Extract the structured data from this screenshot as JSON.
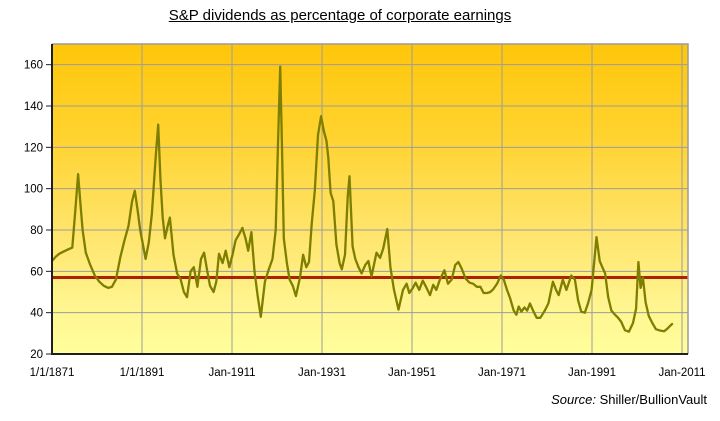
{
  "title": "S&P dividends as percentage of corporate earnings",
  "source": {
    "prefix": "Source:",
    "text": "Shiller/BullionVault"
  },
  "colors": {
    "background": "#FFFFFF",
    "grid": "#9C9C9C",
    "axis_dark": "#1F1F1F",
    "line": "#7E7E00",
    "avg_line": "#AE2100",
    "text": "#000000",
    "plot_gradient": [
      [
        "0%",
        "#FFC60A"
      ],
      [
        "30%",
        "#FFD32F"
      ],
      [
        "60%",
        "#FFE46B"
      ],
      [
        "85%",
        "#FFF590"
      ],
      [
        "100%",
        "#FFFF9C"
      ]
    ]
  },
  "chart_data": {
    "type": "line",
    "title": "S&P dividends as percentage of corporate earnings",
    "xlabel": "",
    "ylabel": "",
    "grid": true,
    "legend": false,
    "ylim": [
      20,
      170
    ],
    "xlim": [
      1871,
      2012.33
    ],
    "y_ticks": [
      20,
      40,
      60,
      80,
      100,
      120,
      140,
      160
    ],
    "x_tick_years": [
      1871,
      1891,
      1911,
      1931,
      1951,
      1971,
      1991,
      2011
    ],
    "x_tick_labels": [
      "1/1/1871",
      "1/1/1891",
      "Jan-1911",
      "Jan-1931",
      "Jan-1951",
      "Jan-1971",
      "Jan-1991",
      "Jan-2011"
    ],
    "average_line": {
      "value": 57
    },
    "series": [
      {
        "name": "S&P dividends as % of corporate earnings",
        "points": [
          [
            1871.0,
            65
          ],
          [
            1871.8,
            67
          ],
          [
            1872.6,
            68.5
          ],
          [
            1873.5,
            69.5
          ],
          [
            1874.5,
            70.5
          ],
          [
            1875.5,
            71.5
          ],
          [
            1876.2,
            90
          ],
          [
            1876.8,
            107
          ],
          [
            1877.3,
            93
          ],
          [
            1877.8,
            80
          ],
          [
            1878.5,
            69
          ],
          [
            1879.5,
            63
          ],
          [
            1880.5,
            58
          ],
          [
            1881.5,
            55
          ],
          [
            1882.5,
            53
          ],
          [
            1883.5,
            52
          ],
          [
            1884.3,
            52.5
          ],
          [
            1885.2,
            56
          ],
          [
            1886.2,
            67
          ],
          [
            1887.1,
            75
          ],
          [
            1888.0,
            82
          ],
          [
            1888.8,
            94
          ],
          [
            1889.4,
            99
          ],
          [
            1890.0,
            90
          ],
          [
            1890.6,
            80
          ],
          [
            1891.2,
            73
          ],
          [
            1891.8,
            66
          ],
          [
            1892.5,
            74
          ],
          [
            1893.2,
            88
          ],
          [
            1894.0,
            114
          ],
          [
            1894.6,
            131
          ],
          [
            1895.1,
            104
          ],
          [
            1895.6,
            86
          ],
          [
            1896.1,
            76
          ],
          [
            1896.7,
            82
          ],
          [
            1897.2,
            86
          ],
          [
            1898.0,
            68
          ],
          [
            1898.8,
            59
          ],
          [
            1899.6,
            56
          ],
          [
            1900.3,
            50
          ],
          [
            1901.0,
            47.5
          ],
          [
            1901.8,
            60
          ],
          [
            1902.5,
            62
          ],
          [
            1903.3,
            52.5
          ],
          [
            1904.1,
            66
          ],
          [
            1904.8,
            69
          ],
          [
            1905.5,
            60
          ],
          [
            1906.1,
            53
          ],
          [
            1906.9,
            50
          ],
          [
            1907.5,
            55
          ],
          [
            1908.1,
            68.5
          ],
          [
            1908.9,
            64
          ],
          [
            1909.6,
            70
          ],
          [
            1910.4,
            62
          ],
          [
            1911.1,
            68
          ],
          [
            1911.8,
            75
          ],
          [
            1912.6,
            78
          ],
          [
            1913.3,
            81
          ],
          [
            1914.0,
            76
          ],
          [
            1914.6,
            70
          ],
          [
            1915.3,
            79
          ],
          [
            1916.0,
            60
          ],
          [
            1916.7,
            48
          ],
          [
            1917.4,
            38
          ],
          [
            1918.3,
            55
          ],
          [
            1919.1,
            60.5
          ],
          [
            1920.0,
            66
          ],
          [
            1920.7,
            80
          ],
          [
            1921.2,
            120
          ],
          [
            1921.7,
            159
          ],
          [
            1922.1,
            120
          ],
          [
            1922.5,
            76
          ],
          [
            1923.2,
            64
          ],
          [
            1923.8,
            56
          ],
          [
            1924.5,
            53
          ],
          [
            1925.2,
            48
          ],
          [
            1926.1,
            57
          ],
          [
            1926.8,
            68
          ],
          [
            1927.5,
            62
          ],
          [
            1928.1,
            64.5
          ],
          [
            1928.7,
            83
          ],
          [
            1929.4,
            99
          ],
          [
            1930.1,
            126
          ],
          [
            1930.8,
            135
          ],
          [
            1931.4,
            128
          ],
          [
            1932.0,
            123
          ],
          [
            1932.4,
            115
          ],
          [
            1932.9,
            98
          ],
          [
            1933.5,
            94
          ],
          [
            1934.2,
            73
          ],
          [
            1934.9,
            64
          ],
          [
            1935.4,
            61
          ],
          [
            1936.1,
            68
          ],
          [
            1936.7,
            96
          ],
          [
            1937.1,
            106
          ],
          [
            1937.8,
            72
          ],
          [
            1938.4,
            66
          ],
          [
            1939.1,
            62
          ],
          [
            1939.8,
            59
          ],
          [
            1940.6,
            63
          ],
          [
            1941.3,
            65
          ],
          [
            1942.0,
            57.5
          ],
          [
            1943.1,
            69
          ],
          [
            1943.9,
            66.5
          ],
          [
            1944.6,
            71
          ],
          [
            1945.5,
            80.5
          ],
          [
            1946.2,
            62
          ],
          [
            1947.0,
            51
          ],
          [
            1948.0,
            41.5
          ],
          [
            1949.0,
            51
          ],
          [
            1949.8,
            54
          ],
          [
            1950.4,
            49.5
          ],
          [
            1951.2,
            52
          ],
          [
            1951.8,
            54.5
          ],
          [
            1952.6,
            51
          ],
          [
            1953.4,
            55.5
          ],
          [
            1954.1,
            52.5
          ],
          [
            1955.0,
            48.5
          ],
          [
            1955.7,
            53.5
          ],
          [
            1956.4,
            51
          ],
          [
            1957.2,
            56
          ],
          [
            1958.2,
            60.5
          ],
          [
            1959.0,
            54
          ],
          [
            1959.8,
            56
          ],
          [
            1960.6,
            63
          ],
          [
            1961.3,
            64.5
          ],
          [
            1962.0,
            61.5
          ],
          [
            1962.9,
            56.5
          ],
          [
            1963.8,
            54.5
          ],
          [
            1964.6,
            54
          ],
          [
            1965.4,
            52.5
          ],
          [
            1966.2,
            52.5
          ],
          [
            1966.9,
            49.5
          ],
          [
            1967.7,
            49.5
          ],
          [
            1968.4,
            50
          ],
          [
            1969.1,
            51.5
          ],
          [
            1969.9,
            54
          ],
          [
            1970.7,
            58
          ],
          [
            1971.4,
            56
          ],
          [
            1972.1,
            51
          ],
          [
            1972.8,
            47
          ],
          [
            1973.6,
            41
          ],
          [
            1974.2,
            39
          ],
          [
            1974.7,
            43
          ],
          [
            1975.3,
            40.5
          ],
          [
            1976.0,
            42.5
          ],
          [
            1976.6,
            41
          ],
          [
            1977.2,
            44.5
          ],
          [
            1977.9,
            41
          ],
          [
            1978.7,
            37.5
          ],
          [
            1979.5,
            37.5
          ],
          [
            1980.5,
            41
          ],
          [
            1981.3,
            44.5
          ],
          [
            1982.3,
            55
          ],
          [
            1983.0,
            51
          ],
          [
            1983.6,
            48.5
          ],
          [
            1984.5,
            56
          ],
          [
            1985.3,
            51
          ],
          [
            1986.4,
            58
          ],
          [
            1987.2,
            56
          ],
          [
            1987.9,
            46
          ],
          [
            1988.6,
            40.5
          ],
          [
            1989.4,
            40
          ],
          [
            1990.1,
            44.5
          ],
          [
            1990.9,
            51
          ],
          [
            1991.5,
            65
          ],
          [
            1992.0,
            76.5
          ],
          [
            1992.7,
            65
          ],
          [
            1993.2,
            62.5
          ],
          [
            1993.9,
            59
          ],
          [
            1994.6,
            47.5
          ],
          [
            1995.3,
            41
          ],
          [
            1996.1,
            39
          ],
          [
            1996.8,
            37.5
          ],
          [
            1997.5,
            35.5
          ],
          [
            1998.3,
            31.5
          ],
          [
            1999.2,
            30.8
          ],
          [
            2000.1,
            35
          ],
          [
            2000.8,
            42
          ],
          [
            2001.3,
            64.5
          ],
          [
            2001.8,
            52
          ],
          [
            2002.3,
            57
          ],
          [
            2002.9,
            45
          ],
          [
            2003.6,
            38.5
          ],
          [
            2004.4,
            35
          ],
          [
            2005.2,
            32
          ],
          [
            2006.2,
            31.3
          ],
          [
            2007.0,
            31
          ],
          [
            2007.7,
            32.2
          ],
          [
            2008.3,
            33.5
          ],
          [
            2008.8,
            34.5
          ]
        ]
      }
    ]
  }
}
